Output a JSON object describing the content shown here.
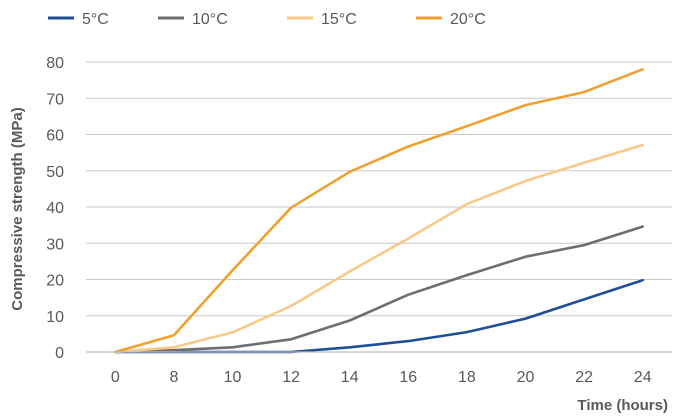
{
  "chart_data": {
    "type": "line",
    "title": "",
    "xlabel": "Time (hours)",
    "ylabel": "Compressive strength (MPa)",
    "categories": [
      "0",
      "8",
      "10",
      "12",
      "14",
      "16",
      "18",
      "20",
      "22",
      "24"
    ],
    "ylim": [
      0,
      80
    ],
    "yticks": [
      "0",
      "10",
      "20",
      "30",
      "40",
      "50",
      "60",
      "70",
      "80"
    ],
    "grid": "horizontal",
    "legend_position": "top-left",
    "series": [
      {
        "name": "5°C",
        "color": "#1f4e96",
        "values": [
          0,
          0,
          0,
          0,
          1.3,
          3,
          5.5,
          9.2,
          14.5,
          19.8
        ]
      },
      {
        "name": "10°C",
        "color": "#6d6e71",
        "values": [
          0,
          0.5,
          1.3,
          3.5,
          8.7,
          15.8,
          21.2,
          26.3,
          29.5,
          34.6
        ]
      },
      {
        "name": "15°C",
        "color": "#f8c98a",
        "values": [
          0,
          1.3,
          5.4,
          12.7,
          22.2,
          31.3,
          40.8,
          47.2,
          52.2,
          57.1
        ]
      },
      {
        "name": "20°C",
        "color": "#f0a030",
        "values": [
          0,
          4.6,
          22.5,
          39.8,
          49.7,
          56.7,
          62.3,
          68.1,
          71.7,
          78.0
        ]
      }
    ]
  }
}
